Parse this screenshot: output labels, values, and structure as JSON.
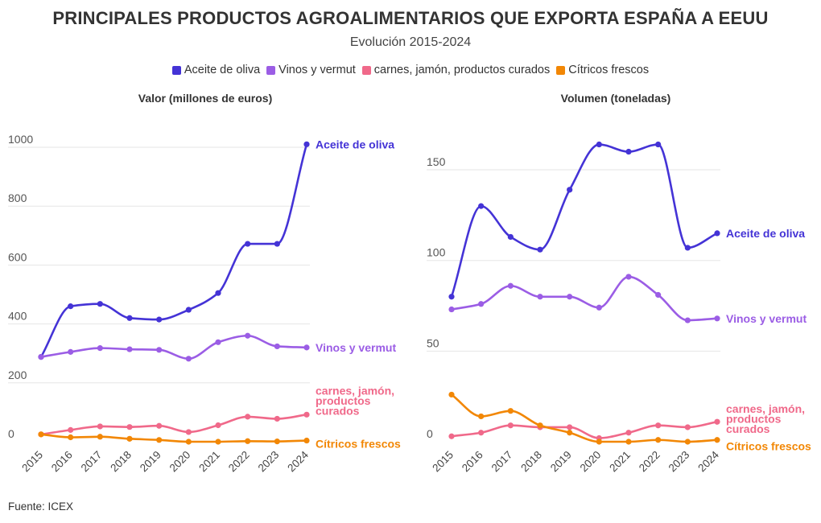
{
  "header": {
    "title": "PRINCIPALES PRODUCTOS AGROALIMENTARIOS QUE EXPORTA ESPAÑA A EEUU",
    "subtitle": "Evolución 2015-2024"
  },
  "legend": [
    {
      "label": "Aceite de oliva",
      "color": "#4433d6"
    },
    {
      "label": "Vinos y vermut",
      "color": "#9b5de5"
    },
    {
      "label": "carnes, jamón, productos curados",
      "color": "#f0698a"
    },
    {
      "label": "Cítricos frescos",
      "color": "#f28705"
    }
  ],
  "footer": {
    "source": "Fuente: ICEX"
  },
  "chart_data": [
    {
      "type": "line",
      "title": "Valor (millones de euros)",
      "xlabel": "",
      "ylabel": "",
      "ylim": [
        0,
        1000
      ],
      "yticks": [
        0,
        200,
        400,
        600,
        800,
        1000
      ],
      "categories": [
        "2015",
        "2016",
        "2017",
        "2018",
        "2019",
        "2020",
        "2021",
        "2022",
        "2023",
        "2024"
      ],
      "series": [
        {
          "name": "Aceite de oliva",
          "end_label": [
            "Aceite de oliva"
          ],
          "color": "#4433d6",
          "values": [
            288,
            460,
            468,
            420,
            415,
            448,
            505,
            672,
            672,
            1010
          ]
        },
        {
          "name": "Vinos y vermut",
          "end_label": [
            "Vinos y vermut"
          ],
          "color": "#9b5de5",
          "values": [
            288,
            305,
            318,
            314,
            312,
            282,
            338,
            360,
            324,
            320
          ]
        },
        {
          "name": "carnes, jamón, productos curados",
          "end_label": [
            "carnes, jamón,",
            "productos",
            "curados"
          ],
          "color": "#f0698a",
          "values": [
            25,
            40,
            52,
            50,
            54,
            33,
            56,
            85,
            78,
            92
          ]
        },
        {
          "name": "Cítricos frescos",
          "end_label": [
            "Cítricos frescos"
          ],
          "color": "#f28705",
          "values": [
            25,
            15,
            17,
            10,
            6,
            0,
            0,
            2,
            1,
            4
          ]
        }
      ]
    },
    {
      "type": "line",
      "title": "Volumen (toneladas)",
      "xlabel": "",
      "ylabel": "",
      "ylim": [
        0,
        170
      ],
      "yticks": [
        0,
        50,
        100,
        150
      ],
      "categories": [
        "2015",
        "2016",
        "2017",
        "2018",
        "2019",
        "2020",
        "2021",
        "2022",
        "2023",
        "2024"
      ],
      "series": [
        {
          "name": "Aceite de oliva",
          "end_label": [
            "Aceite de oliva"
          ],
          "color": "#4433d6",
          "values": [
            80,
            130,
            113,
            106,
            139,
            164,
            160,
            164,
            107,
            115
          ]
        },
        {
          "name": "Vinos y vermut",
          "end_label": [
            "Vinos y vermut"
          ],
          "color": "#9b5de5",
          "values": [
            73,
            76,
            86,
            80,
            80,
            74,
            91,
            81,
            67,
            68
          ]
        },
        {
          "name": "carnes, jamón, productos curados",
          "end_label": [
            "carnes, jamón,",
            "productos",
            "curados"
          ],
          "color": "#f0698a",
          "values": [
            3,
            5,
            9,
            8,
            8,
            2,
            5,
            9,
            8,
            11
          ]
        },
        {
          "name": "Cítricos frescos",
          "end_label": [
            "Cítricos frescos"
          ],
          "color": "#f28705",
          "values": [
            26,
            14,
            17,
            9,
            5,
            0,
            0,
            1,
            0,
            1
          ]
        }
      ]
    }
  ]
}
